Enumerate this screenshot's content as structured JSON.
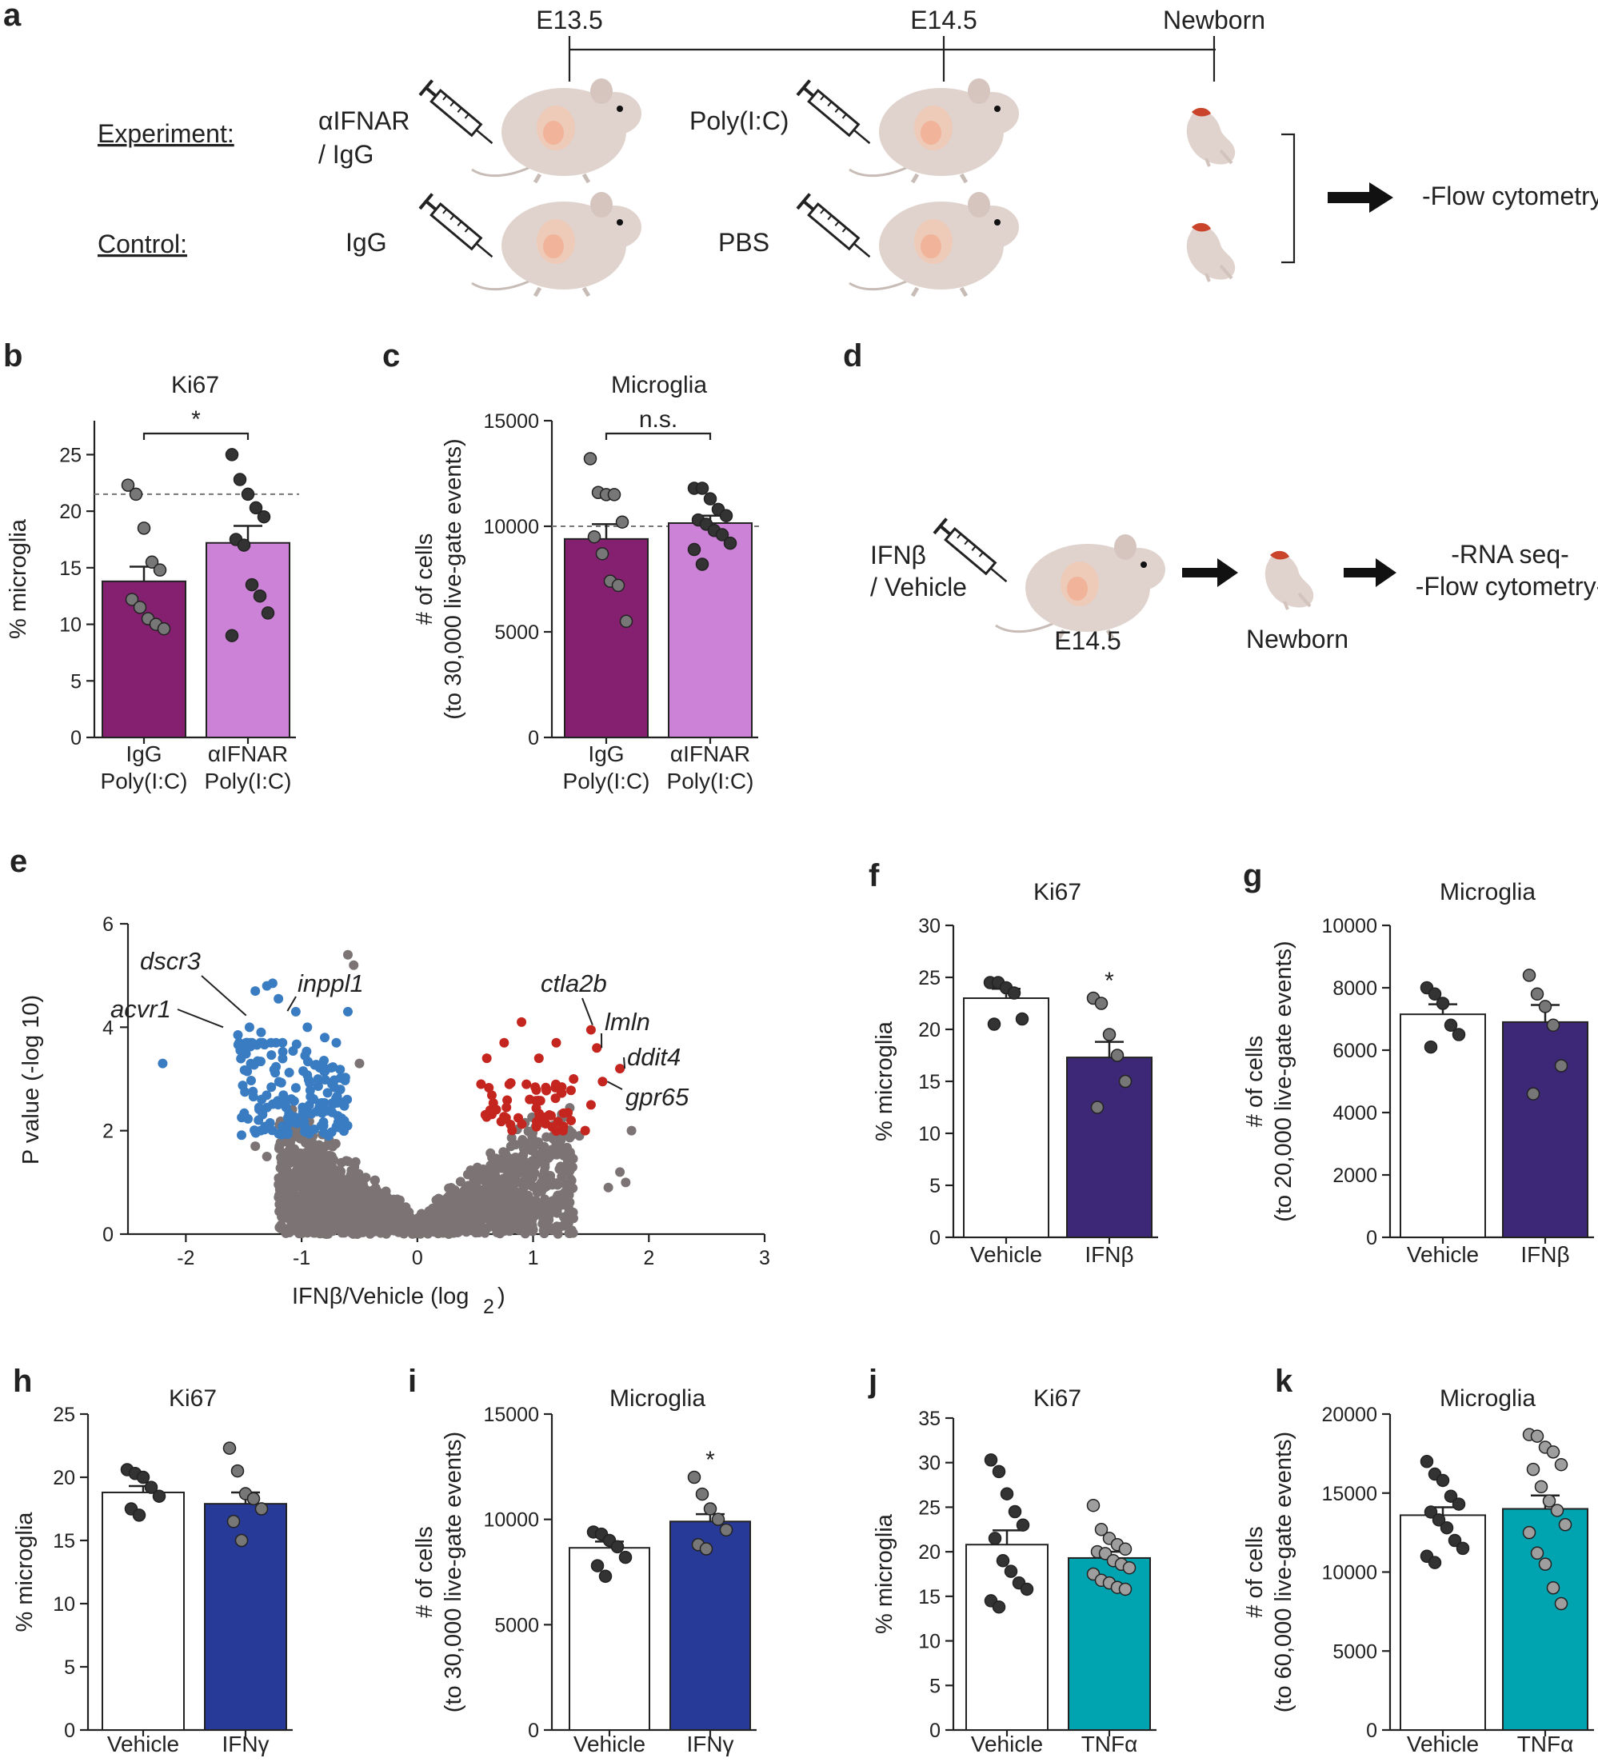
{
  "colors": {
    "ipc_dark": "#852070",
    "ipc_light": "#cc82d6",
    "ifnb": "#3c2876",
    "ifng": "#283a97",
    "tnfa": "#00a4b1",
    "up": "#c4261f",
    "down": "#3a7cc2",
    "ns": "#7c7474",
    "dot_dark": "#333333",
    "dot_mid": "#777777",
    "dot_light": "#b5b5b5"
  },
  "panel_a": {
    "label": "a",
    "timepoints": [
      "E13.5",
      "E14.5",
      "Newborn"
    ],
    "experiment_label": "Experiment:",
    "control_label": "Control:",
    "exp_treat1": [
      "αIFNAR",
      "/ IgG"
    ],
    "exp_treat2": "Poly(I:C)",
    "ctrl_treat1": "IgG",
    "ctrl_treat2": "PBS",
    "readout": "-Flow cytometry-"
  },
  "panel_d": {
    "label": "d",
    "treatment": [
      "IFNβ",
      "/ Vehicle"
    ],
    "timepoint": "E14.5",
    "newborn": "Newborn",
    "readouts": [
      "-RNA seq-",
      "-Flow cytometry-"
    ]
  },
  "chart_data": [
    {
      "id": "b",
      "label": "b",
      "type": "bar",
      "title": "Ki67",
      "ylabel": "% microglia",
      "ylim": [
        0,
        28
      ],
      "yticks": [
        0,
        5,
        10,
        15,
        20,
        25
      ],
      "categories": [
        [
          "IgG",
          "Poly(I:C)"
        ],
        [
          "αIFNAR",
          "Poly(I:C)"
        ]
      ],
      "values": [
        13.8,
        17.2
      ],
      "sem": [
        1.3,
        1.5
      ],
      "points": [
        [
          22.3,
          21.5,
          18.5,
          15.5,
          14.8,
          12.2,
          11.5,
          10.5,
          10.0,
          9.6
        ],
        [
          25.0,
          22.8,
          21.5,
          20.3,
          19.5,
          17.5,
          17.0,
          13.5,
          12.5,
          11.0,
          9.0
        ]
      ],
      "point_colors": [
        "#777777",
        "#333333"
      ],
      "bar_colors": [
        "#852070",
        "#cc82d6"
      ],
      "dashed_y": 21.5,
      "significance": "*"
    },
    {
      "id": "c",
      "label": "c",
      "type": "bar",
      "title": "Microglia",
      "ylabel": [
        "# of cells",
        "(to 30,000 live-gate events)"
      ],
      "ylim": [
        0,
        15000
      ],
      "yticks": [
        0,
        5000,
        10000,
        15000
      ],
      "categories": [
        [
          "IgG",
          "Poly(I:C)"
        ],
        [
          "αIFNAR",
          "Poly(I:C)"
        ]
      ],
      "values": [
        9400,
        10150
      ],
      "sem": [
        700,
        350
      ],
      "points": [
        [
          13200,
          11600,
          11500,
          11500,
          10200,
          9500,
          8700,
          7400,
          7200,
          5500
        ],
        [
          11800,
          11800,
          11300,
          10800,
          10500,
          10300,
          10100,
          9800,
          9600,
          9200,
          8900,
          8200
        ]
      ],
      "point_colors": [
        "#777777",
        "#333333"
      ],
      "bar_colors": [
        "#852070",
        "#cc82d6"
      ],
      "dashed_y": 10000,
      "significance": "n.s."
    },
    {
      "id": "e",
      "label": "e",
      "type": "scatter",
      "xlabel": "IFNβ/Vehicle  (log",
      "xlabel_sub": "2",
      "xlabel_close": ")",
      "ylabel": "P value (-log",
      "ylabel_sub": "10",
      "ylabel_close": ")",
      "xlim": [
        -2.5,
        3
      ],
      "ylim": [
        0,
        6
      ],
      "xticks": [
        -2,
        -1,
        0,
        1,
        2,
        3
      ],
      "yticks": [
        0,
        2,
        4,
        6
      ],
      "genes": [
        {
          "name": "dscr3",
          "x": -1.5,
          "y": 4.2
        },
        {
          "name": "acvr1",
          "x": -1.65,
          "y": 4.0
        },
        {
          "name": "inppl1",
          "x": -1.15,
          "y": 4.3
        },
        {
          "name": "ctla2b",
          "x": 1.5,
          "y": 3.95
        },
        {
          "name": "lmln",
          "x": 1.55,
          "y": 3.6
        },
        {
          "name": "ddit4",
          "x": 1.75,
          "y": 3.2
        },
        {
          "name": "gpr65",
          "x": 1.6,
          "y": 2.95
        }
      ],
      "down_points": [
        [
          -2.2,
          3.3
        ],
        [
          -1.3,
          4.8
        ],
        [
          -1.25,
          4.85
        ],
        [
          -1.4,
          4.7
        ],
        [
          -1.2,
          4.55
        ],
        [
          -1.05,
          4.3
        ],
        [
          -0.6,
          4.3
        ],
        [
          -1.45,
          4.0
        ],
        [
          -1.35,
          3.9
        ],
        [
          -1.55,
          3.85
        ],
        [
          -0.95,
          4.0
        ],
        [
          -0.8,
          3.8
        ],
        [
          -0.7,
          3.7
        ]
      ],
      "up_points": [
        [
          1.5,
          3.95
        ],
        [
          1.55,
          3.6
        ],
        [
          1.75,
          3.2
        ],
        [
          1.6,
          2.95
        ],
        [
          0.9,
          4.1
        ],
        [
          0.75,
          3.7
        ],
        [
          1.2,
          3.7
        ],
        [
          1.05,
          3.4
        ],
        [
          1.35,
          3.0
        ],
        [
          1.5,
          2.5
        ],
        [
          1.45,
          2.0
        ],
        [
          0.6,
          3.4
        ],
        [
          0.55,
          2.9
        ]
      ],
      "ns_points": [
        [
          -0.6,
          5.4
        ],
        [
          -0.55,
          5.2
        ],
        [
          1.85,
          2.0
        ],
        [
          1.8,
          1.0
        ],
        [
          1.75,
          1.2
        ],
        [
          1.65,
          0.9
        ],
        [
          1.3,
          1.4
        ],
        [
          1.2,
          1.75
        ],
        [
          -1.3,
          1.5
        ],
        [
          -1.4,
          1.7
        ],
        [
          -1.0,
          1.0
        ],
        [
          -0.5,
          3.3
        ],
        [
          0.9,
          0.8
        ],
        [
          1.4,
          1.9
        ]
      ]
    },
    {
      "id": "f",
      "label": "f",
      "type": "bar",
      "title": "Ki67",
      "ylabel": "% microglia",
      "ylim": [
        0,
        30
      ],
      "yticks": [
        0,
        5,
        10,
        15,
        20,
        25,
        30
      ],
      "categories": [
        [
          "Vehicle"
        ],
        [
          "IFNβ"
        ]
      ],
      "values": [
        23.0,
        17.3
      ],
      "sem": [
        0.9,
        1.5
      ],
      "points": [
        [
          24.5,
          24.5,
          24.0,
          23.5,
          21.0,
          20.5
        ],
        [
          23.0,
          22.5,
          19.5,
          17.5,
          15.0,
          12.5
        ]
      ],
      "point_colors": [
        "#333333",
        "#777777"
      ],
      "bar_colors": [
        "#ffffff",
        "#3c2876"
      ],
      "significance": "*"
    },
    {
      "id": "g",
      "label": "g",
      "type": "bar",
      "title": "Microglia",
      "ylabel": [
        "# of cells",
        "(to 20,000 live-gate events)"
      ],
      "ylim": [
        0,
        10000
      ],
      "yticks": [
        0,
        2000,
        4000,
        6000,
        8000,
        10000
      ],
      "categories": [
        [
          "Vehicle"
        ],
        [
          "IFNβ"
        ]
      ],
      "values": [
        7150,
        6900
      ],
      "sem": [
        320,
        550
      ],
      "points": [
        [
          8000,
          7800,
          7500,
          6800,
          6500,
          6100
        ],
        [
          8400,
          7800,
          7400,
          6800,
          5500,
          4600
        ]
      ],
      "point_colors": [
        "#333333",
        "#777777"
      ],
      "bar_colors": [
        "#ffffff",
        "#3c2876"
      ]
    },
    {
      "id": "h",
      "label": "h",
      "type": "bar",
      "title": "Ki67",
      "ylabel": "% microglia",
      "ylim": [
        0,
        25
      ],
      "yticks": [
        0,
        5,
        10,
        15,
        20,
        25
      ],
      "categories": [
        [
          "Vehicle"
        ],
        [
          "IFNγ"
        ]
      ],
      "values": [
        18.8,
        17.9
      ],
      "sem": [
        0.5,
        0.9
      ],
      "points": [
        [
          20.6,
          20.3,
          20.0,
          19.2,
          18.5,
          17.5,
          17.0
        ],
        [
          22.3,
          20.5,
          18.7,
          18.3,
          17.5,
          16.5,
          15.0
        ]
      ],
      "point_colors": [
        "#333333",
        "#777777"
      ],
      "bar_colors": [
        "#ffffff",
        "#283a97"
      ]
    },
    {
      "id": "i",
      "label": "i",
      "type": "bar",
      "title": "Microglia",
      "ylabel": [
        "# of cells",
        "(to 30,000 live-gate events)"
      ],
      "ylim": [
        0,
        15000
      ],
      "yticks": [
        0,
        5000,
        10000,
        15000
      ],
      "categories": [
        [
          "Vehicle"
        ],
        [
          "IFNγ"
        ]
      ],
      "values": [
        8650,
        9900
      ],
      "sem": [
        300,
        350
      ],
      "points": [
        [
          9400,
          9300,
          9000,
          8700,
          8200,
          7800,
          7300
        ],
        [
          12000,
          11200,
          10500,
          10000,
          9500,
          8800,
          8600
        ]
      ],
      "point_colors": [
        "#333333",
        "#777777"
      ],
      "bar_colors": [
        "#ffffff",
        "#283a97"
      ],
      "significance": "*"
    },
    {
      "id": "j",
      "label": "j",
      "type": "bar",
      "title": "Ki67",
      "ylabel": "% microglia",
      "ylim": [
        0,
        35
      ],
      "yticks": [
        0,
        5,
        10,
        15,
        20,
        25,
        30,
        35
      ],
      "categories": [
        [
          "Vehicle"
        ],
        [
          "TNFα"
        ]
      ],
      "values": [
        20.8,
        19.3
      ],
      "sem": [
        1.6,
        0.7
      ],
      "points": [
        [
          30.3,
          29.0,
          26.5,
          24.5,
          23.0,
          21.5,
          19.0,
          17.8,
          16.5,
          15.8,
          14.5,
          13.8
        ],
        [
          25.2,
          22.5,
          21.5,
          20.8,
          20.3,
          20.0,
          19.8,
          19.0,
          18.6,
          18.2,
          17.5,
          16.8,
          16.5,
          16.0,
          15.8
        ]
      ],
      "point_colors": [
        "#333333",
        "#9e9e9e"
      ],
      "bar_colors": [
        "#ffffff",
        "#00a4b1"
      ]
    },
    {
      "id": "k",
      "label": "k",
      "type": "bar",
      "title": "Microglia",
      "ylabel": [
        "# of cells",
        "(to 60,000 live-gate events)"
      ],
      "ylim": [
        0,
        20000
      ],
      "yticks": [
        0,
        5000,
        10000,
        15000,
        20000
      ],
      "categories": [
        [
          "Vehicle"
        ],
        [
          "TNFα"
        ]
      ],
      "values": [
        13600,
        14000
      ],
      "sem": [
        500,
        850
      ],
      "points": [
        [
          17000,
          16200,
          15800,
          14800,
          14300,
          13800,
          13300,
          12800,
          12000,
          11500,
          11000,
          10600
        ],
        [
          18700,
          18600,
          17900,
          17600,
          16800,
          16500,
          15400,
          14500,
          13900,
          13000,
          12500,
          11200,
          10500,
          9000,
          8000
        ]
      ],
      "point_colors": [
        "#333333",
        "#9e9e9e"
      ],
      "bar_colors": [
        "#ffffff",
        "#00a4b1"
      ]
    }
  ]
}
